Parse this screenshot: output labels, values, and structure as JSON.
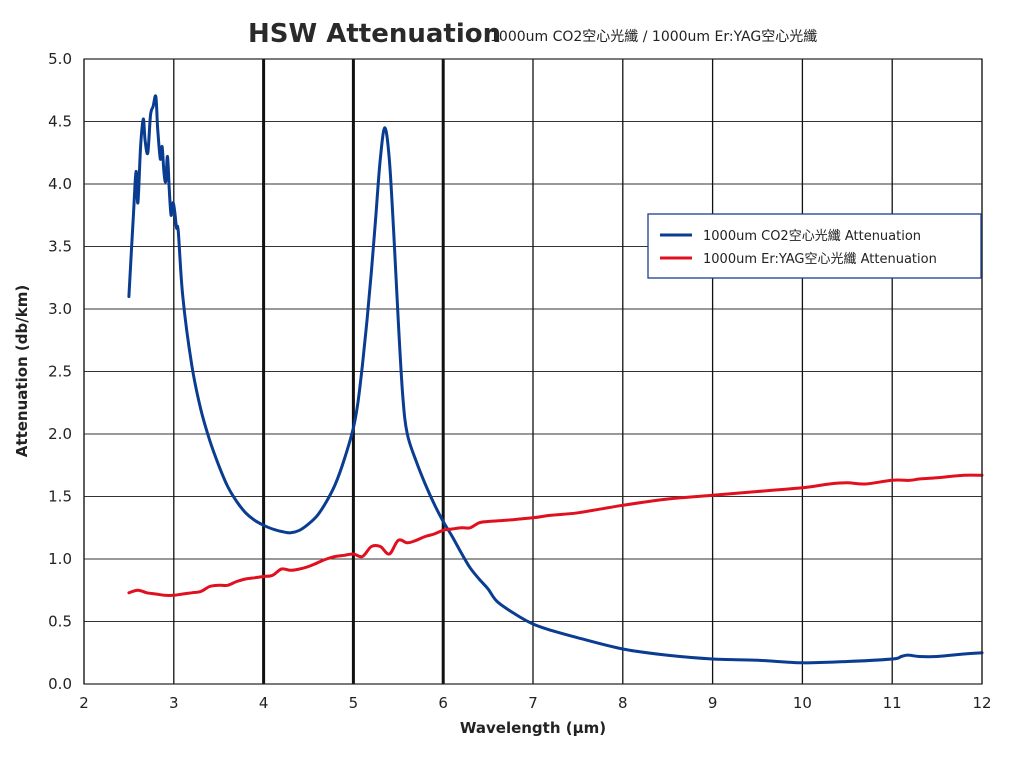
{
  "chart_data": {
    "type": "line",
    "title": "HSW Attenuation",
    "subtitle": "1000um  CO2空心光纖 / 1000um Er:YAG空心光纖",
    "xlabel": "Wavelength (μm)",
    "ylabel": "Attenuation (db/km)",
    "xlim": [
      2,
      12
    ],
    "ylim": [
      0,
      5
    ],
    "xticks": [
      "2",
      "3",
      "4",
      "5",
      "6",
      "7",
      "8",
      "9",
      "10",
      "11",
      "12"
    ],
    "yticks": [
      "0.0",
      "0.5",
      "1.0",
      "1.5",
      "2.0",
      "2.5",
      "3.0",
      "3.5",
      "4.0",
      "4.5",
      "5.0"
    ],
    "emphasized_x_gridlines": [
      4,
      5,
      6
    ],
    "grid": true,
    "legend_position": "right",
    "series": [
      {
        "name": "1000um  CO2空心光纖 Attenuation",
        "color": "#0a3d91",
        "x": [
          2.5,
          2.55,
          2.58,
          2.6,
          2.63,
          2.66,
          2.68,
          2.71,
          2.74,
          2.77,
          2.8,
          2.82,
          2.85,
          2.87,
          2.89,
          2.91,
          2.93,
          2.95,
          2.97,
          2.99,
          3.01,
          3.03,
          3.05,
          3.1,
          3.2,
          3.3,
          3.4,
          3.5,
          3.6,
          3.7,
          3.8,
          3.9,
          4.0,
          4.1,
          4.2,
          4.3,
          4.4,
          4.5,
          4.6,
          4.7,
          4.8,
          4.9,
          5.0,
          5.05,
          5.1,
          5.15,
          5.2,
          5.25,
          5.3,
          5.35,
          5.4,
          5.45,
          5.5,
          5.55,
          5.6,
          5.7,
          5.8,
          5.9,
          6.0,
          6.1,
          6.2,
          6.3,
          6.4,
          6.5,
          6.6,
          6.8,
          7.0,
          7.2,
          7.5,
          8.0,
          8.5,
          9.0,
          9.5,
          10.0,
          10.5,
          11.0,
          11.1,
          11.15,
          11.2,
          11.3,
          11.5,
          11.8,
          12.0
        ],
        "values": [
          3.1,
          3.75,
          4.1,
          3.85,
          4.3,
          4.52,
          4.35,
          4.25,
          4.55,
          4.62,
          4.7,
          4.45,
          4.2,
          4.3,
          4.1,
          4.02,
          4.22,
          3.95,
          3.75,
          3.85,
          3.78,
          3.65,
          3.62,
          3.1,
          2.55,
          2.2,
          1.95,
          1.75,
          1.58,
          1.46,
          1.37,
          1.31,
          1.27,
          1.24,
          1.22,
          1.21,
          1.23,
          1.28,
          1.35,
          1.46,
          1.6,
          1.8,
          2.05,
          2.25,
          2.55,
          2.9,
          3.3,
          3.75,
          4.2,
          4.45,
          4.2,
          3.6,
          2.9,
          2.3,
          2.0,
          1.78,
          1.6,
          1.44,
          1.3,
          1.18,
          1.05,
          0.93,
          0.84,
          0.76,
          0.66,
          0.56,
          0.48,
          0.43,
          0.37,
          0.28,
          0.23,
          0.2,
          0.19,
          0.17,
          0.18,
          0.2,
          0.22,
          0.23,
          0.23,
          0.22,
          0.22,
          0.24,
          0.25
        ]
      },
      {
        "name": "1000um Er:YAG空心光纖 Attenuation",
        "color": "#e0101e",
        "x": [
          2.5,
          2.6,
          2.7,
          2.8,
          2.9,
          3.0,
          3.1,
          3.2,
          3.3,
          3.4,
          3.5,
          3.6,
          3.7,
          3.8,
          3.9,
          4.0,
          4.1,
          4.2,
          4.3,
          4.4,
          4.5,
          4.6,
          4.7,
          4.8,
          4.9,
          5.0,
          5.1,
          5.2,
          5.3,
          5.4,
          5.5,
          5.6,
          5.7,
          5.8,
          5.9,
          6.0,
          6.1,
          6.2,
          6.3,
          6.4,
          6.5,
          6.7,
          7.0,
          7.2,
          7.5,
          8.0,
          8.5,
          9.0,
          9.5,
          10.0,
          10.3,
          10.5,
          10.7,
          11.0,
          11.2,
          11.3,
          11.5,
          11.8,
          12.0
        ],
        "values": [
          0.73,
          0.75,
          0.73,
          0.72,
          0.71,
          0.71,
          0.72,
          0.73,
          0.74,
          0.78,
          0.79,
          0.79,
          0.82,
          0.84,
          0.85,
          0.86,
          0.87,
          0.92,
          0.91,
          0.92,
          0.94,
          0.97,
          1.0,
          1.02,
          1.03,
          1.04,
          1.02,
          1.1,
          1.1,
          1.04,
          1.15,
          1.13,
          1.15,
          1.18,
          1.2,
          1.23,
          1.24,
          1.25,
          1.25,
          1.29,
          1.3,
          1.31,
          1.33,
          1.35,
          1.37,
          1.43,
          1.48,
          1.51,
          1.54,
          1.57,
          1.6,
          1.61,
          1.6,
          1.63,
          1.63,
          1.64,
          1.65,
          1.67,
          1.67
        ]
      }
    ]
  }
}
